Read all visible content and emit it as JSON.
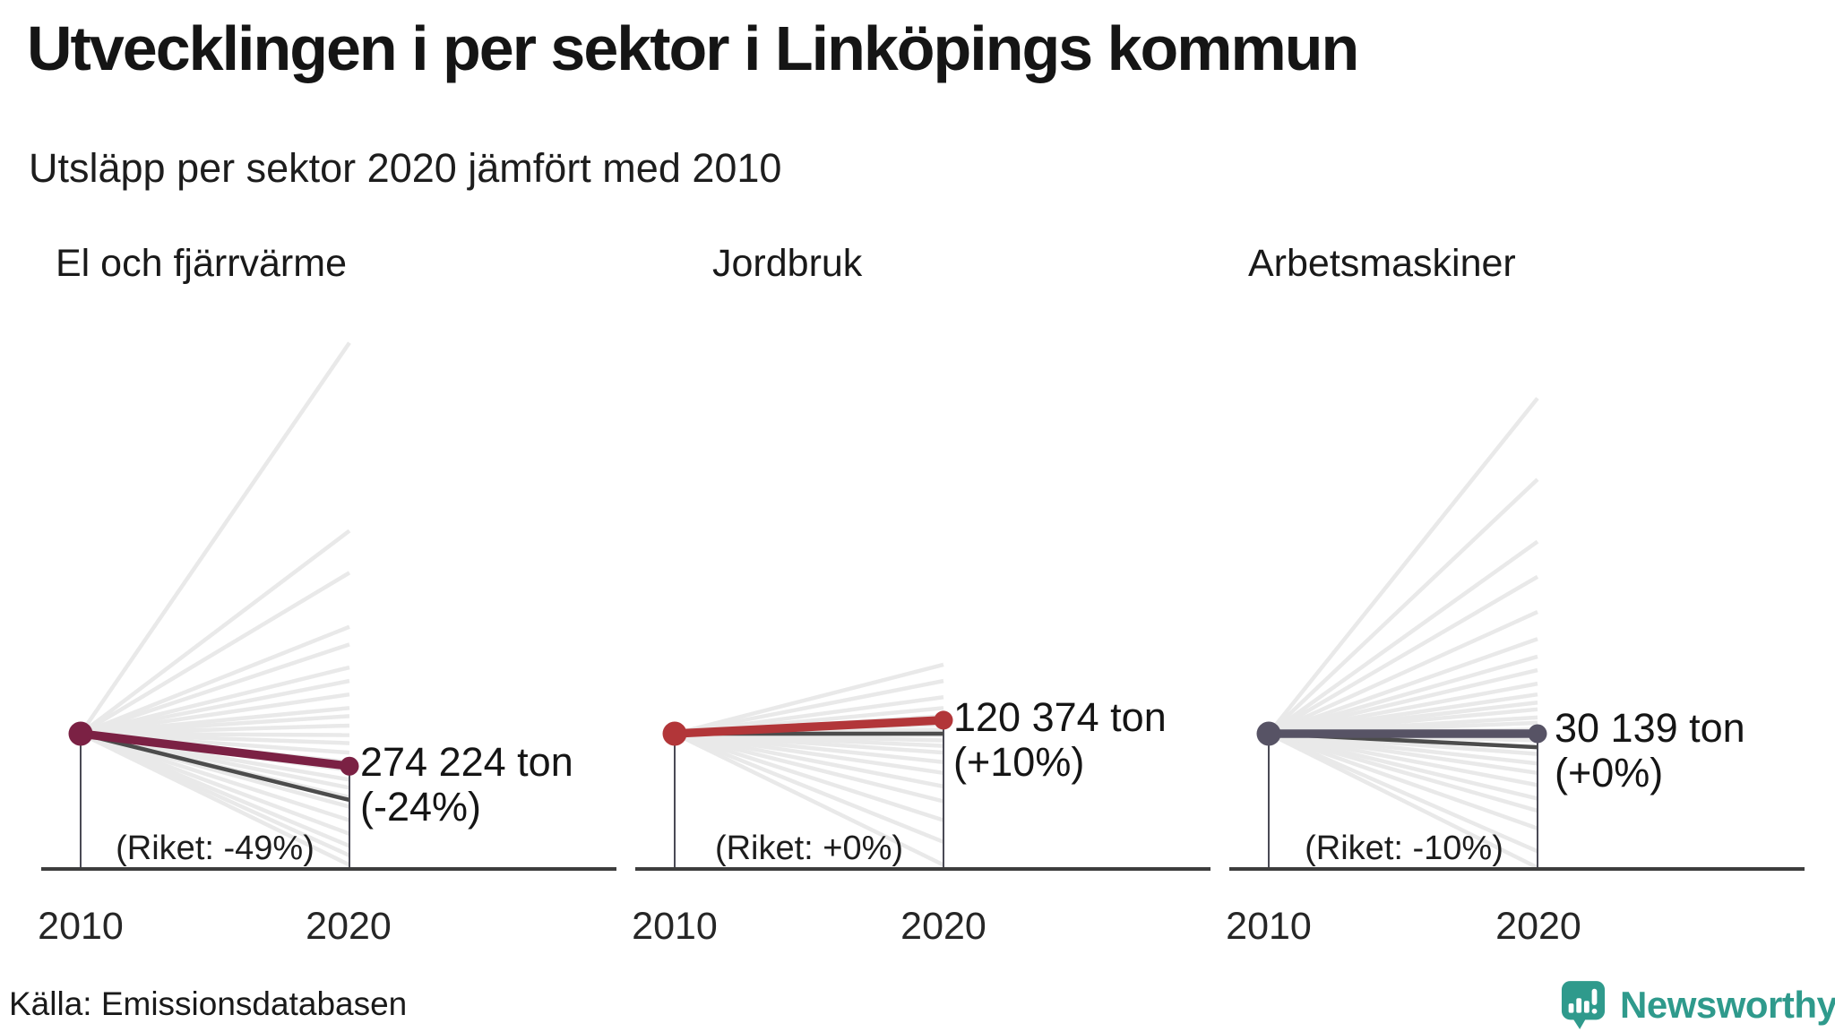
{
  "title": "Utvecklingen i per sektor i Linköpings kommun",
  "subtitle": "Utsläpp per sektor 2020 jämfört med 2010",
  "source": "Källa: Emissionsdatabasen",
  "branding": {
    "name": "Newsworthy",
    "color": "#2f9a8c"
  },
  "axis": {
    "years": [
      "2010",
      "2020"
    ]
  },
  "colors": {
    "axis_line": "#3d3d3d",
    "riket_line": "#4c4c4c",
    "fan_line": "#e9e9e9",
    "drop_line": "#4a4a55"
  },
  "chart_data": {
    "type": "slope",
    "x": [
      "2010",
      "2020"
    ],
    "unit": "ton CO2",
    "note_series": "gray fan = other municipalities, dark gray = national (Riket), colored = Linköpings kommun",
    "charts": [
      {
        "sector": "El och fjärrvärme",
        "value_2020_ton": 274224,
        "value_label": "274 224 ton",
        "change_pct": -24,
        "change_label": "(-24%)",
        "riket_change_pct": -49,
        "riket_label": "(Riket: -49%)",
        "color": "#7b2144",
        "background_change_pcts": [
          289,
          150,
          119,
          79,
          66,
          49,
          39,
          29,
          19,
          13,
          6,
          -1,
          -7,
          -14,
          -21,
          -27,
          -34,
          -40,
          -47,
          -54,
          -64,
          -74,
          -83,
          -90,
          -97
        ]
      },
      {
        "sector": "Jordbruk",
        "value_2020_ton": 120374,
        "value_label": "120 374 ton",
        "change_pct": 10,
        "change_label": "(+10%)",
        "riket_change_pct": 0,
        "riket_label": "(Riket: +0%)",
        "color": "#b23639",
        "background_change_pcts": [
          51,
          39,
          27,
          19,
          13,
          7,
          3,
          -1,
          -5,
          -9,
          -14,
          -21,
          -29,
          -39,
          -50,
          -64,
          -80,
          -97
        ]
      },
      {
        "sector": "Arbetsmaskiner",
        "value_2020_ton": 30139,
        "value_label": "30 139 ton",
        "change_pct": 0,
        "change_label": "(+0%)",
        "riket_change_pct": -10,
        "riket_label": "(Riket: -10%)",
        "color": "#575365",
        "background_change_pcts": [
          248,
          188,
          142,
          116,
          90,
          70,
          57,
          47,
          37,
          29,
          23,
          18,
          12,
          8,
          3,
          -1,
          -5,
          -10,
          -15,
          -22,
          -29,
          -38,
          -48,
          -57,
          -70,
          -87,
          -99
        ]
      }
    ]
  }
}
